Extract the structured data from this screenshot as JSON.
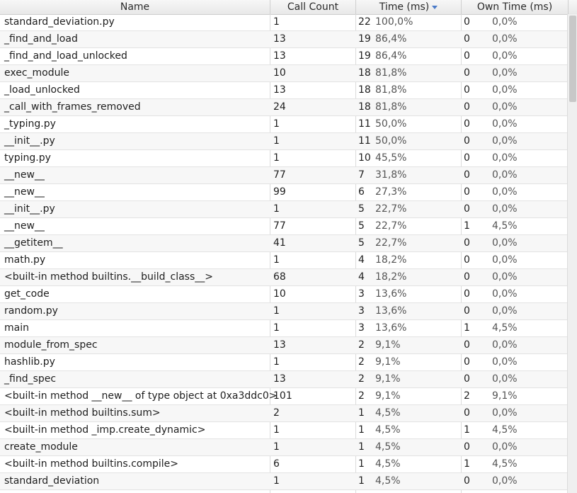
{
  "columns": {
    "name": "Name",
    "calls": "Call Count",
    "time": "Time (ms)",
    "own": "Own Time (ms)"
  },
  "sort": {
    "column": "time",
    "direction": "descending",
    "icon": "sort-down-icon"
  },
  "rows": [
    {
      "name": "standard_deviation.py",
      "calls": "1",
      "time": "22",
      "time_pct": "100,0%",
      "own": "0",
      "own_pct": "0,0%"
    },
    {
      "name": "_find_and_load",
      "calls": "13",
      "time": "19",
      "time_pct": "86,4%",
      "own": "0",
      "own_pct": "0,0%"
    },
    {
      "name": "_find_and_load_unlocked",
      "calls": "13",
      "time": "19",
      "time_pct": "86,4%",
      "own": "0",
      "own_pct": "0,0%"
    },
    {
      "name": "exec_module",
      "calls": "10",
      "time": "18",
      "time_pct": "81,8%",
      "own": "0",
      "own_pct": "0,0%"
    },
    {
      "name": "_load_unlocked",
      "calls": "13",
      "time": "18",
      "time_pct": "81,8%",
      "own": "0",
      "own_pct": "0,0%"
    },
    {
      "name": "_call_with_frames_removed",
      "calls": "24",
      "time": "18",
      "time_pct": "81,8%",
      "own": "0",
      "own_pct": "0,0%"
    },
    {
      "name": "_typing.py",
      "calls": "1",
      "time": "11",
      "time_pct": "50,0%",
      "own": "0",
      "own_pct": "0,0%"
    },
    {
      "name": "__init__.py",
      "calls": "1",
      "time": "11",
      "time_pct": "50,0%",
      "own": "0",
      "own_pct": "0,0%"
    },
    {
      "name": "typing.py",
      "calls": "1",
      "time": "10",
      "time_pct": "45,5%",
      "own": "0",
      "own_pct": "0,0%"
    },
    {
      "name": "__new__",
      "calls": "77",
      "time": "7",
      "time_pct": "31,8%",
      "own": "0",
      "own_pct": "0,0%"
    },
    {
      "name": "__new__",
      "calls": "99",
      "time": "6",
      "time_pct": "27,3%",
      "own": "0",
      "own_pct": "0,0%"
    },
    {
      "name": "__init__.py",
      "calls": "1",
      "time": "5",
      "time_pct": "22,7%",
      "own": "0",
      "own_pct": "0,0%"
    },
    {
      "name": "__new__",
      "calls": "77",
      "time": "5",
      "time_pct": "22,7%",
      "own": "1",
      "own_pct": "4,5%"
    },
    {
      "name": "__getitem__",
      "calls": "41",
      "time": "5",
      "time_pct": "22,7%",
      "own": "0",
      "own_pct": "0,0%"
    },
    {
      "name": "math.py",
      "calls": "1",
      "time": "4",
      "time_pct": "18,2%",
      "own": "0",
      "own_pct": "0,0%"
    },
    {
      "name": "<built-in method builtins.__build_class__>",
      "calls": "68",
      "time": "4",
      "time_pct": "18,2%",
      "own": "0",
      "own_pct": "0,0%"
    },
    {
      "name": "get_code",
      "calls": "10",
      "time": "3",
      "time_pct": "13,6%",
      "own": "0",
      "own_pct": "0,0%"
    },
    {
      "name": "random.py",
      "calls": "1",
      "time": "3",
      "time_pct": "13,6%",
      "own": "0",
      "own_pct": "0,0%"
    },
    {
      "name": "main",
      "calls": "1",
      "time": "3",
      "time_pct": "13,6%",
      "own": "1",
      "own_pct": "4,5%"
    },
    {
      "name": "module_from_spec",
      "calls": "13",
      "time": "2",
      "time_pct": "9,1%",
      "own": "0",
      "own_pct": "0,0%"
    },
    {
      "name": "hashlib.py",
      "calls": "1",
      "time": "2",
      "time_pct": "9,1%",
      "own": "0",
      "own_pct": "0,0%"
    },
    {
      "name": "_find_spec",
      "calls": "13",
      "time": "2",
      "time_pct": "9,1%",
      "own": "0",
      "own_pct": "0,0%"
    },
    {
      "name": "<built-in method __new__ of type object at 0xa3ddc0>",
      "calls": "101",
      "time": "2",
      "time_pct": "9,1%",
      "own": "2",
      "own_pct": "9,1%"
    },
    {
      "name": "<built-in method builtins.sum>",
      "calls": "2",
      "time": "1",
      "time_pct": "4,5%",
      "own": "0",
      "own_pct": "0,0%"
    },
    {
      "name": "<built-in method _imp.create_dynamic>",
      "calls": "1",
      "time": "1",
      "time_pct": "4,5%",
      "own": "1",
      "own_pct": "4,5%"
    },
    {
      "name": "create_module",
      "calls": "1",
      "time": "1",
      "time_pct": "4,5%",
      "own": "0",
      "own_pct": "0,0%"
    },
    {
      "name": "<built-in method builtins.compile>",
      "calls": "6",
      "time": "1",
      "time_pct": "4,5%",
      "own": "1",
      "own_pct": "4,5%"
    },
    {
      "name": "standard_deviation",
      "calls": "1",
      "time": "1",
      "time_pct": "4,5%",
      "own": "0",
      "own_pct": "0,0%"
    }
  ]
}
